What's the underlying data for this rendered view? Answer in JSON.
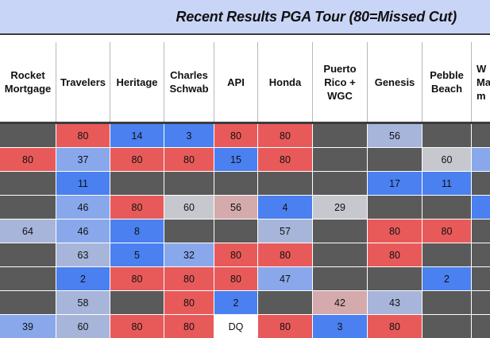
{
  "title": "Recent Results PGA Tour (80=Missed Cut)",
  "columns": [
    "Rocket\nMortgage",
    "Travelers",
    "Heritage",
    "Charles\nSchwab",
    "API",
    "Honda",
    "Puerto\nRico +\nWGC",
    "Genesis",
    "Pebble\nBeach",
    "W\nMa\nm"
  ],
  "colors": {
    "gray": "#5a5a5a",
    "red": "#e85a5a",
    "blue": "#4a80f0",
    "light_blue": "#89a8ec",
    "pale_blue": "#a6b5d9",
    "silver": "#c6c8ce",
    "pink": "#d4aaac",
    "white": "#ffffff"
  },
  "rows": [
    [
      [
        "",
        "gray"
      ],
      [
        "80",
        "red"
      ],
      [
        "14",
        "blue"
      ],
      [
        "3",
        "blue"
      ],
      [
        "80",
        "red"
      ],
      [
        "80",
        "red"
      ],
      [
        "",
        "gray"
      ],
      [
        "56",
        "pale_blue"
      ],
      [
        "",
        "gray"
      ],
      [
        "",
        "gray"
      ]
    ],
    [
      [
        "80",
        "red"
      ],
      [
        "37",
        "light_blue"
      ],
      [
        "80",
        "red"
      ],
      [
        "80",
        "red"
      ],
      [
        "15",
        "blue"
      ],
      [
        "80",
        "red"
      ],
      [
        "",
        "gray"
      ],
      [
        "",
        "gray"
      ],
      [
        "60",
        "silver"
      ],
      [
        "",
        "light_blue"
      ]
    ],
    [
      [
        "",
        "gray"
      ],
      [
        "11",
        "blue"
      ],
      [
        "",
        "gray"
      ],
      [
        "",
        "gray"
      ],
      [
        "",
        "gray"
      ],
      [
        "",
        "gray"
      ],
      [
        "",
        "gray"
      ],
      [
        "17",
        "blue"
      ],
      [
        "11",
        "blue"
      ],
      [
        "",
        "gray"
      ]
    ],
    [
      [
        "",
        "gray"
      ],
      [
        "46",
        "light_blue"
      ],
      [
        "80",
        "red"
      ],
      [
        "60",
        "silver"
      ],
      [
        "56",
        "pink"
      ],
      [
        "4",
        "blue"
      ],
      [
        "29",
        "silver"
      ],
      [
        "",
        "gray"
      ],
      [
        "",
        "gray"
      ],
      [
        "",
        "blue"
      ]
    ],
    [
      [
        "64",
        "pale_blue"
      ],
      [
        "46",
        "light_blue"
      ],
      [
        "8",
        "blue"
      ],
      [
        "",
        "gray"
      ],
      [
        "",
        "gray"
      ],
      [
        "57",
        "pale_blue"
      ],
      [
        "",
        "gray"
      ],
      [
        "80",
        "red"
      ],
      [
        "80",
        "red"
      ],
      [
        "",
        "gray"
      ]
    ],
    [
      [
        "",
        "gray"
      ],
      [
        "63",
        "pale_blue"
      ],
      [
        "5",
        "blue"
      ],
      [
        "32",
        "light_blue"
      ],
      [
        "80",
        "red"
      ],
      [
        "80",
        "red"
      ],
      [
        "",
        "gray"
      ],
      [
        "80",
        "red"
      ],
      [
        "",
        "gray"
      ],
      [
        "",
        "gray"
      ]
    ],
    [
      [
        "",
        "gray"
      ],
      [
        "2",
        "blue"
      ],
      [
        "80",
        "red"
      ],
      [
        "80",
        "red"
      ],
      [
        "80",
        "red"
      ],
      [
        "47",
        "light_blue"
      ],
      [
        "",
        "gray"
      ],
      [
        "",
        "gray"
      ],
      [
        "2",
        "blue"
      ],
      [
        "",
        "gray"
      ]
    ],
    [
      [
        "",
        "gray"
      ],
      [
        "58",
        "pale_blue"
      ],
      [
        "",
        "gray"
      ],
      [
        "80",
        "red"
      ],
      [
        "2",
        "blue"
      ],
      [
        "",
        "gray"
      ],
      [
        "42",
        "pink"
      ],
      [
        "43",
        "pale_blue"
      ],
      [
        "",
        "gray"
      ],
      [
        "",
        "gray"
      ]
    ],
    [
      [
        "39",
        "light_blue"
      ],
      [
        "60",
        "pale_blue"
      ],
      [
        "80",
        "red"
      ],
      [
        "80",
        "red"
      ],
      [
        "DQ",
        "white"
      ],
      [
        "80",
        "red"
      ],
      [
        "3",
        "blue"
      ],
      [
        "80",
        "red"
      ],
      [
        "",
        "gray"
      ],
      [
        "",
        "gray"
      ]
    ]
  ]
}
